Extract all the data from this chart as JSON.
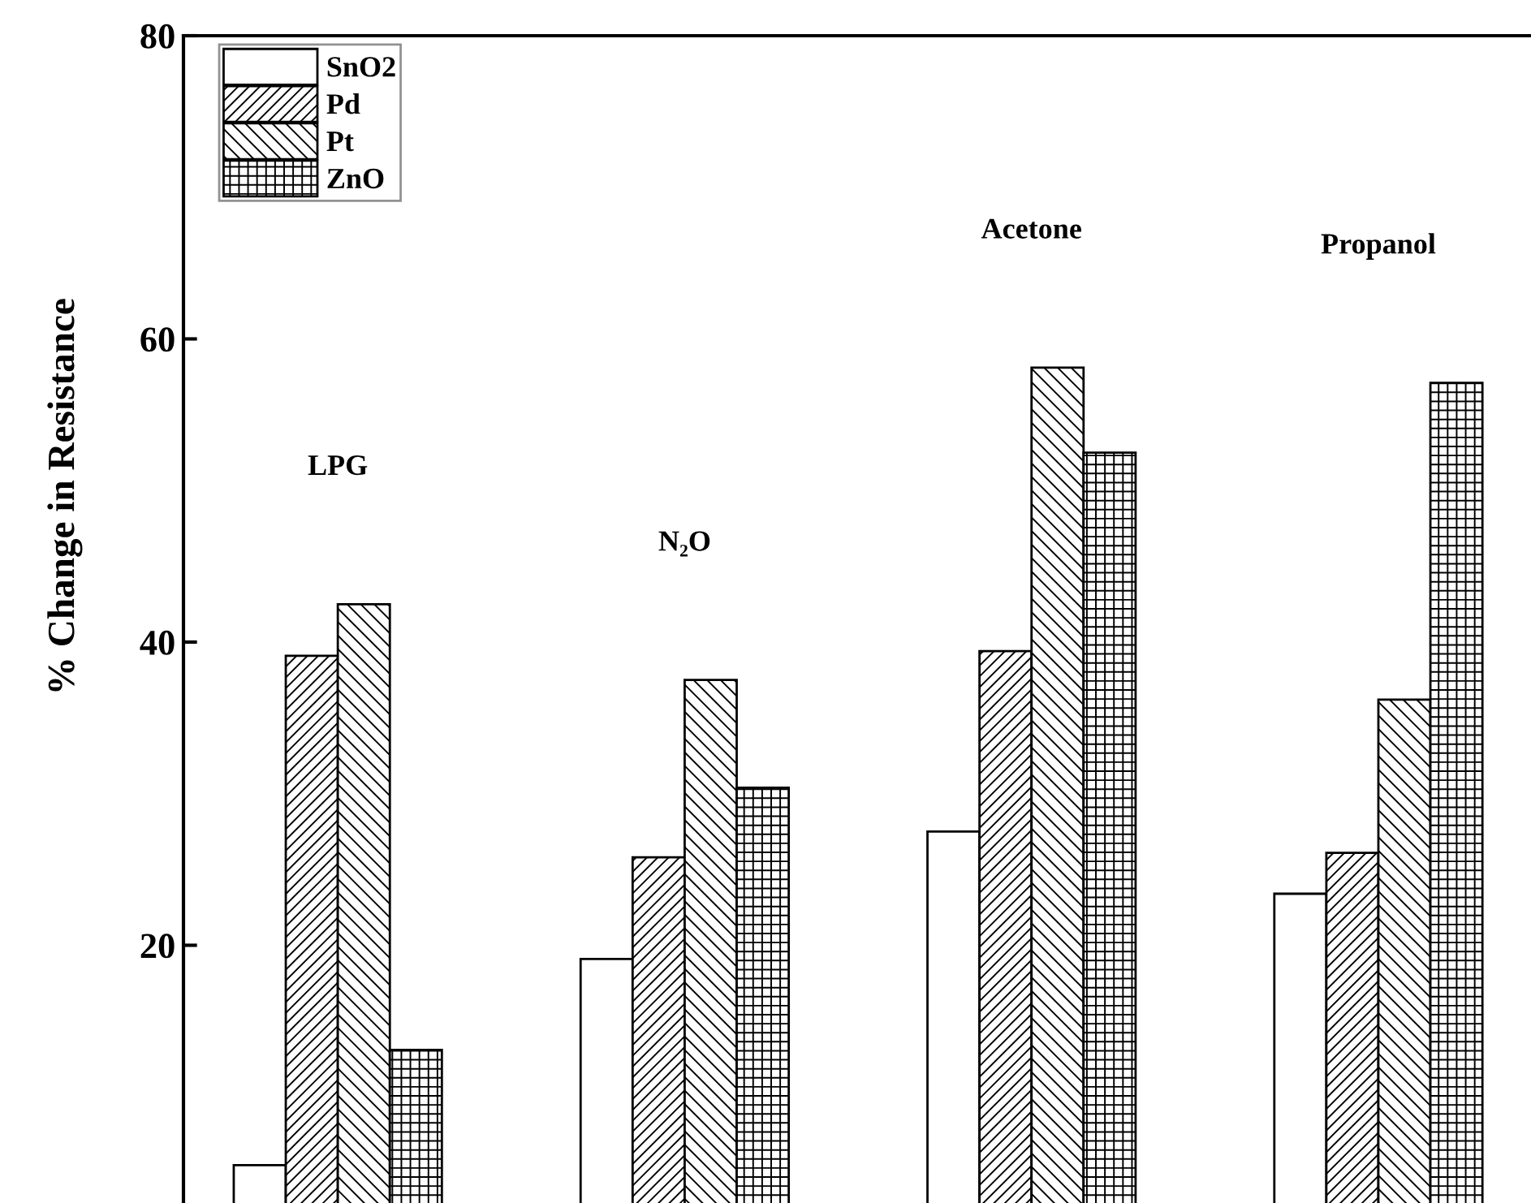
{
  "chart_data": {
    "type": "bar",
    "ylabel": "% Change in Resistance",
    "categories": [
      "LPG",
      "N₂O",
      "Acetone",
      "Propanol"
    ],
    "series": [
      {
        "name": "SnO2",
        "color": "#ffffff",
        "values": [
          5.5,
          19.1,
          27.5,
          23.4
        ]
      },
      {
        "name": "Pd",
        "color": "#000000",
        "values": [
          39.1,
          25.8,
          39.4,
          26.1
        ]
      },
      {
        "name": "Pt",
        "color": "#000000",
        "values": [
          42.5,
          37.5,
          58.1,
          36.2
        ]
      },
      {
        "name": "ZnO",
        "color": "#000000",
        "values": [
          13.1,
          30.4,
          52.5,
          57.1
        ]
      }
    ],
    "ylim": [
      0,
      80
    ],
    "yticks": [
      20,
      40,
      60,
      80
    ],
    "grid": false,
    "legend": "top left"
  }
}
